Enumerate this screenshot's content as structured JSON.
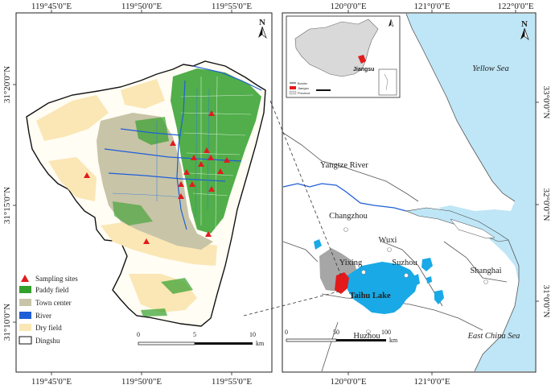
{
  "left_map": {
    "top_ticks": [
      "119°45'0\"E",
      "119°50'0\"E",
      "119°55'0\"E"
    ],
    "bottom_ticks": [
      "119°45'0\"E",
      "119°50'0\"E",
      "119°55'0\"E"
    ],
    "left_ticks": [
      "31°20'0\"N",
      "31°15'0\"N",
      "31°10'0\"N"
    ],
    "north_label": "N",
    "legend": [
      {
        "label": "Sampling sites",
        "color": "#e31a1c"
      },
      {
        "label": "Paddy field",
        "color": "#33a02c"
      },
      {
        "label": "Town center",
        "color": "#c8c4a8"
      },
      {
        "label": "River",
        "color": "#1f5fd6"
      },
      {
        "label": "Dry field",
        "color": "#fbe7b5"
      },
      {
        "label": "Dingshu",
        "color": "#ffffff"
      }
    ],
    "scale": {
      "ticks": [
        "0",
        "5",
        "10"
      ],
      "unit": "km"
    }
  },
  "right_map": {
    "top_ticks": [
      "120°0'0\"E",
      "121°0'0\"E",
      "122°0'0\"E"
    ],
    "bottom_ticks": [
      "120°0'0\"E",
      "121°0'0\"E"
    ],
    "right_ticks": [
      "33°0'0\"N",
      "32°0'0\"N",
      "31°0'0\"N"
    ],
    "north_label": "N",
    "inset_label": "Jiangsu",
    "inset_legend": [
      "Border",
      "Jiangsu",
      "Province"
    ],
    "place_labels": {
      "yellow_sea": "Yellow Sea",
      "east_china_sea": "East China Sea",
      "yangtze": "Yangtze River",
      "changzhou": "Changzhou",
      "wuxi": "Wuxi",
      "yixing": "Yixing",
      "suzhou": "Suzhou",
      "shanghai": "Shanghai",
      "taihu": "Taihu Lake",
      "huzhou": "Huzhou"
    },
    "scale": {
      "ticks": [
        "0",
        "50",
        "100"
      ],
      "unit": "km"
    },
    "colors": {
      "sea": "#bfe6f6",
      "lake": "#19a9e6",
      "yixing": "#a6a6a6",
      "dingshu": "#e31a1c"
    }
  }
}
